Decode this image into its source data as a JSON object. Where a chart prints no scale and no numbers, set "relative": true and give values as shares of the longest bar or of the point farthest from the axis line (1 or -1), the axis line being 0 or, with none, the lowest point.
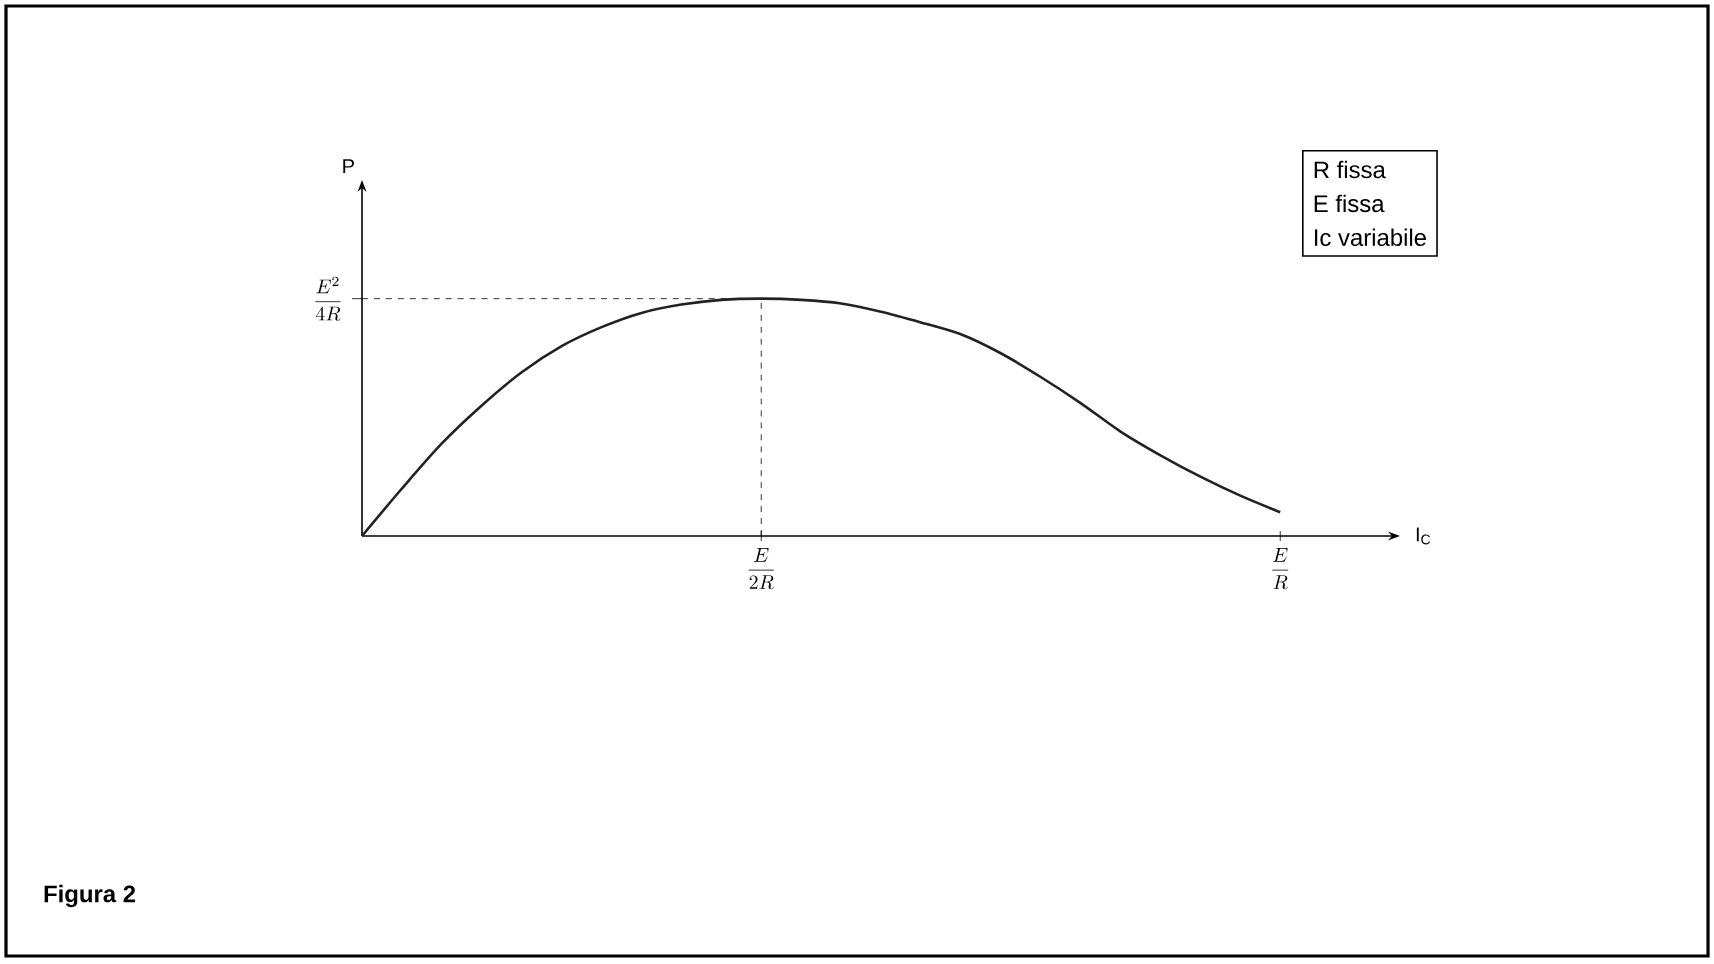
{
  "chart_data": {
    "type": "line",
    "title": "Figura 2",
    "relative": true,
    "categories": [
      null,
      null,
      null,
      null,
      null,
      null,
      null,
      null,
      null,
      null,
      "\\frac{E}{2R}",
      null,
      null,
      null,
      null,
      null,
      null,
      null,
      null,
      null,
      null,
      null,
      null,
      "\\frac{E}{R}"
    ],
    "values": [
      0,
      0.2,
      0.39,
      0.55,
      0.69,
      0.8,
      0.88,
      0.94,
      0.975,
      0.995,
      1,
      0.995,
      0.98,
      0.945,
      0.9,
      0.85,
      0.77,
      0.67,
      0.56,
      0.44,
      0.34,
      0.25,
      0.17,
      0.1
    ],
    "color": "#222222",
    "ref_lines": [
      {
        "axis": "y",
        "value": 1,
        "line_style": "dashed"
      },
      {
        "axis": "x",
        "value": "\\frac{E}{2R}",
        "line_style": "dashed"
      }
    ],
    "annotations": [
      "\\frac{E^{2}}{4R}",
      "R fissa",
      "E fissa",
      "Ic variabile",
      "P",
      "I$_{C}$"
    ],
    "grid": false,
    "marker": "none",
    "line_style": "solid"
  }
}
